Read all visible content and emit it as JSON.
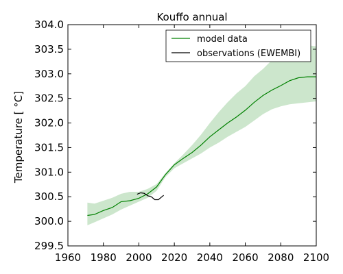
{
  "chart_data": {
    "type": "line",
    "title": "Kouffo annual",
    "xlabel": "",
    "ylabel": "Temperature [ °C]",
    "xlim": [
      1960,
      2100
    ],
    "ylim": [
      299.5,
      304.0
    ],
    "xticks": [
      1960,
      1980,
      2000,
      2020,
      2040,
      2060,
      2080,
      2100
    ],
    "yticks": [
      299.5,
      300.0,
      300.5,
      301.0,
      301.5,
      302.0,
      302.5,
      303.0,
      303.5,
      304.0
    ],
    "grid": false,
    "legend_position": "top-right",
    "series": [
      {
        "name": "model data",
        "color": "#008000",
        "x": [
          1971,
          1975,
          1980,
          1985,
          1990,
          1995,
          2000,
          2005,
          2010,
          2015,
          2020,
          2025,
          2030,
          2035,
          2040,
          2045,
          2050,
          2055,
          2060,
          2065,
          2070,
          2075,
          2080,
          2085,
          2090,
          2095,
          2100
        ],
        "values": [
          300.12,
          300.14,
          300.22,
          300.28,
          300.4,
          300.42,
          300.47,
          300.56,
          300.7,
          300.95,
          301.15,
          301.28,
          301.4,
          301.55,
          301.72,
          301.86,
          302.0,
          302.12,
          302.26,
          302.42,
          302.56,
          302.67,
          302.76,
          302.86,
          302.92,
          302.94,
          302.94
        ]
      },
      {
        "name": "observations (EWEMBI)",
        "color": "#000000",
        "x": [
          1999,
          2001,
          2003,
          2005,
          2007,
          2009,
          2011,
          2013,
          2014
        ],
        "values": [
          300.55,
          300.58,
          300.57,
          300.52,
          300.5,
          300.44,
          300.44,
          300.5,
          300.53
        ]
      }
    ],
    "band": {
      "series": "model data",
      "color": "#008000",
      "x": [
        1971,
        1975,
        1980,
        1985,
        1990,
        1995,
        2000,
        2005,
        2010,
        2015,
        2020,
        2025,
        2030,
        2035,
        2040,
        2045,
        2050,
        2055,
        2060,
        2065,
        2070,
        2075,
        2080,
        2085,
        2090,
        2095,
        2100
      ],
      "upper": [
        300.38,
        300.36,
        300.42,
        300.48,
        300.56,
        300.6,
        300.6,
        300.66,
        300.76,
        300.98,
        301.18,
        301.36,
        301.55,
        301.76,
        302.0,
        302.22,
        302.42,
        302.6,
        302.75,
        302.95,
        303.1,
        303.28,
        303.45,
        303.55,
        303.6,
        303.58,
        303.56
      ],
      "lower": [
        299.92,
        299.98,
        300.06,
        300.14,
        300.24,
        300.32,
        300.4,
        300.48,
        300.62,
        300.9,
        301.08,
        301.18,
        301.28,
        301.38,
        301.5,
        301.6,
        301.72,
        301.82,
        301.92,
        302.05,
        302.18,
        302.28,
        302.34,
        302.38,
        302.4,
        302.42,
        302.44
      ]
    }
  }
}
